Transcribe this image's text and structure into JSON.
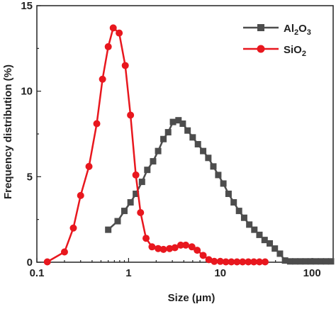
{
  "chart_data": {
    "type": "line",
    "xlabel": "Size (μm)",
    "ylabel": "Frequency distribution (%)",
    "x_scale": "log",
    "xlim": [
      0.1,
      170
    ],
    "ylim": [
      0,
      15
    ],
    "x_ticks": [
      {
        "value": 0.1,
        "label": "0.1"
      },
      {
        "value": 1,
        "label": "1"
      },
      {
        "value": 10,
        "label": "10"
      },
      {
        "value": 100,
        "label": "100"
      }
    ],
    "y_ticks": [
      {
        "value": 0,
        "label": "0"
      },
      {
        "value": 5,
        "label": "5"
      },
      {
        "value": 10,
        "label": "10"
      },
      {
        "value": 15,
        "label": "15"
      }
    ],
    "grid": false,
    "legend_position": "top-right",
    "series": [
      {
        "name": "Al2O3",
        "legend_base": "Al",
        "legend_sub1": "2",
        "legend_mid": "O",
        "legend_sub2": "3",
        "color": "#4d4d4d",
        "marker": "square",
        "x": [
          0.6,
          0.76,
          0.9,
          1.05,
          1.2,
          1.4,
          1.6,
          1.85,
          2.1,
          2.4,
          2.7,
          3.05,
          3.5,
          3.9,
          4.4,
          5.0,
          5.7,
          6.5,
          7.4,
          8.4,
          9.5,
          10.8,
          12.3,
          14,
          16,
          18.2,
          20.7,
          23.5,
          26.7,
          30.4,
          34.6,
          39.3,
          44.7,
          50.8,
          57.8,
          65.8,
          74.8,
          85,
          96.7,
          110,
          125,
          142,
          161
        ],
        "values": [
          1.9,
          2.4,
          3.0,
          3.5,
          4.0,
          4.7,
          5.4,
          5.9,
          6.5,
          7.2,
          7.6,
          8.2,
          8.3,
          8.1,
          7.7,
          7.3,
          6.9,
          6.5,
          6.1,
          5.6,
          5.1,
          4.6,
          4.0,
          3.5,
          3.0,
          2.6,
          2.2,
          1.9,
          1.6,
          1.3,
          1.1,
          0.8,
          0.5,
          0.1,
          0.05,
          0.05,
          0.05,
          0.05,
          0.05,
          0.05,
          0.05,
          0.05,
          0.05
        ]
      },
      {
        "name": "SiO2",
        "legend_base": "SiO",
        "legend_sub1": "2",
        "legend_mid": "",
        "legend_sub2": "",
        "color": "#e8171e",
        "marker": "circle",
        "x": [
          0.13,
          0.2,
          0.25,
          0.3,
          0.37,
          0.45,
          0.52,
          0.6,
          0.68,
          0.79,
          0.92,
          1.05,
          1.2,
          1.35,
          1.55,
          1.8,
          2.1,
          2.4,
          2.8,
          3.2,
          3.7,
          4.2,
          4.9,
          5.6,
          6.5,
          7.5,
          8.6,
          10,
          11.5,
          13.2,
          15.2,
          17.5,
          20.2,
          23.2,
          26.7,
          30.8
        ],
        "values": [
          0.02,
          0.6,
          2.0,
          3.9,
          5.6,
          8.1,
          10.7,
          12.6,
          13.7,
          13.4,
          11.5,
          8.6,
          5.1,
          2.9,
          1.4,
          0.9,
          0.8,
          0.75,
          0.8,
          0.85,
          1.0,
          1.0,
          0.9,
          0.7,
          0.4,
          0.15,
          0.05,
          0.05,
          0.02,
          0.02,
          0.02,
          0.02,
          0.02,
          0.02,
          0.02,
          0.02
        ]
      }
    ]
  }
}
